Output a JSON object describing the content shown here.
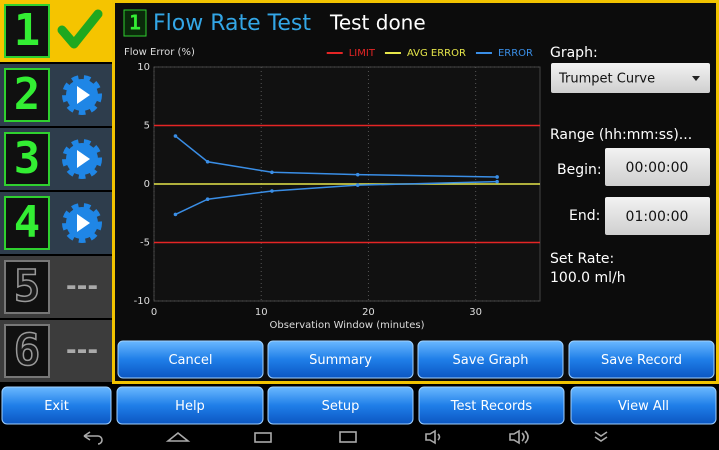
{
  "sidebar": {
    "steps": [
      {
        "digit": "1",
        "state": "done"
      },
      {
        "digit": "2",
        "state": "ready"
      },
      {
        "digit": "3",
        "state": "ready"
      },
      {
        "digit": "4",
        "state": "ready"
      },
      {
        "digit": "5",
        "label": "---"
      },
      {
        "digit": "6",
        "label": "---"
      }
    ]
  },
  "header": {
    "step": "1",
    "title": "Flow Rate Test",
    "status": "Test done"
  },
  "chart_data": {
    "type": "line",
    "title": "Flow Error (%)",
    "x_label": "Observation Window (minutes)",
    "xlim": [
      0,
      36
    ],
    "xticks": [
      0,
      10,
      20,
      30
    ],
    "ylim": [
      -10,
      10
    ],
    "yticks": [
      -10,
      -5,
      0,
      5,
      10
    ],
    "grid": true,
    "legend": "top-right",
    "series": [
      {
        "name": "LIMIT",
        "color": "#e52525",
        "hlines": [
          5,
          -5
        ]
      },
      {
        "name": "AVG ERROR",
        "color": "#e6e64a",
        "hlines": [
          0
        ]
      },
      {
        "name": "ERROR",
        "color": "#3a8ee6",
        "x": [
          2,
          5,
          11,
          19,
          32,
          null,
          2,
          5,
          11,
          19,
          32
        ],
        "values": [
          4.1,
          1.9,
          1.0,
          0.8,
          0.6,
          null,
          -2.6,
          -1.3,
          -0.6,
          -0.1,
          0.2
        ]
      }
    ]
  },
  "controls": {
    "graph_label": "Graph:",
    "graph_value": "Trumpet Curve",
    "range_label": "Range (hh:mm:ss)...",
    "begin_label": "Begin:",
    "begin_value": "00:00:00",
    "end_label": "End:",
    "end_value": "01:00:00",
    "rate_label": "Set Rate:",
    "rate_value": "100.0 ml/h"
  },
  "actions": [
    "Cancel",
    "Summary",
    "Save Graph",
    "Save Record"
  ],
  "toolbar": [
    "Exit",
    "Help",
    "Setup",
    "Test Records",
    "View All"
  ]
}
